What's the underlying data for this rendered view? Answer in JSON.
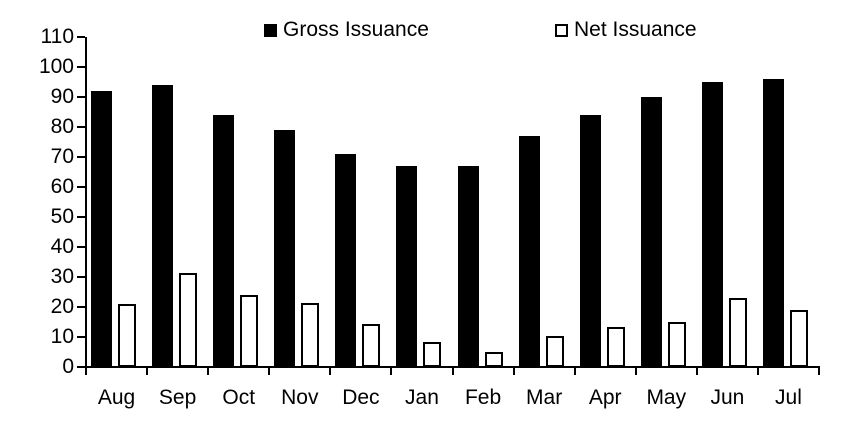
{
  "chart_data": {
    "type": "bar",
    "title": "",
    "xlabel": "",
    "ylabel": "",
    "categories": [
      "Aug",
      "Sep",
      "Oct",
      "Nov",
      "Dec",
      "Jan",
      "Feb",
      "Mar",
      "Apr",
      "May",
      "Jun",
      "Jul"
    ],
    "series": [
      {
        "name": "Gross Issuance",
        "marker": "filled-square",
        "fill": "#000000",
        "values": [
          92,
          94,
          84,
          79,
          71,
          67,
          67,
          77,
          84,
          90,
          95,
          96
        ]
      },
      {
        "name": "Net Issuance",
        "marker": "open-square",
        "fill": "#ffffff",
        "values": [
          21,
          31.5,
          24,
          21.5,
          14.5,
          8.5,
          5,
          10.5,
          13.5,
          15,
          23,
          19
        ]
      }
    ],
    "ylim": [
      0,
      110
    ],
    "ytick_step": 10,
    "ytick_labels": [
      "0",
      "10",
      "20",
      "30",
      "40",
      "50",
      "60",
      "70",
      "80",
      "90",
      "100",
      "110"
    ],
    "legend_position": "top",
    "grid": false
  },
  "colors": {
    "gross_bar": "#000000",
    "net_bar_fill": "#ffffff",
    "net_bar_border": "#000000",
    "axis": "#000000",
    "background": "#ffffff",
    "text": "#000000"
  }
}
